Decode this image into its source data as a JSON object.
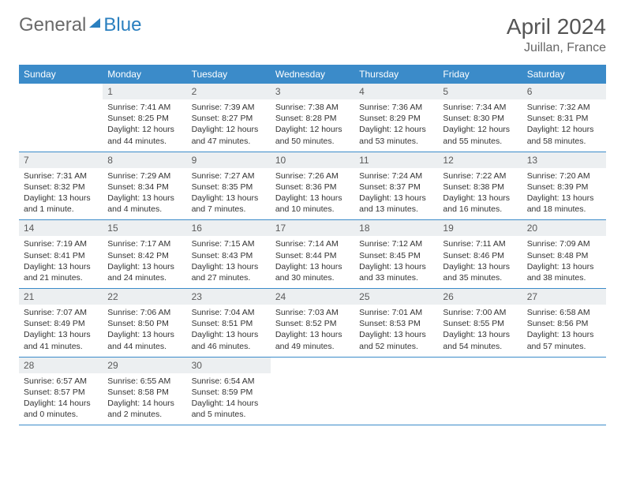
{
  "logo": {
    "part1": "General",
    "part2": "Blue"
  },
  "title": "April 2024",
  "location": "Juillan, France",
  "colors": {
    "header_bg": "#3b8bc9",
    "daynum_bg": "#eceff1",
    "text": "#333333",
    "logo_gray": "#6a6a6a",
    "logo_blue": "#2a7fbf"
  },
  "daysOfWeek": [
    "Sunday",
    "Monday",
    "Tuesday",
    "Wednesday",
    "Thursday",
    "Friday",
    "Saturday"
  ],
  "weeks": [
    [
      {
        "n": "",
        "empty": true
      },
      {
        "n": "1",
        "sr": "Sunrise: 7:41 AM",
        "ss": "Sunset: 8:25 PM",
        "dl1": "Daylight: 12 hours",
        "dl2": "and 44 minutes."
      },
      {
        "n": "2",
        "sr": "Sunrise: 7:39 AM",
        "ss": "Sunset: 8:27 PM",
        "dl1": "Daylight: 12 hours",
        "dl2": "and 47 minutes."
      },
      {
        "n": "3",
        "sr": "Sunrise: 7:38 AM",
        "ss": "Sunset: 8:28 PM",
        "dl1": "Daylight: 12 hours",
        "dl2": "and 50 minutes."
      },
      {
        "n": "4",
        "sr": "Sunrise: 7:36 AM",
        "ss": "Sunset: 8:29 PM",
        "dl1": "Daylight: 12 hours",
        "dl2": "and 53 minutes."
      },
      {
        "n": "5",
        "sr": "Sunrise: 7:34 AM",
        "ss": "Sunset: 8:30 PM",
        "dl1": "Daylight: 12 hours",
        "dl2": "and 55 minutes."
      },
      {
        "n": "6",
        "sr": "Sunrise: 7:32 AM",
        "ss": "Sunset: 8:31 PM",
        "dl1": "Daylight: 12 hours",
        "dl2": "and 58 minutes."
      }
    ],
    [
      {
        "n": "7",
        "sr": "Sunrise: 7:31 AM",
        "ss": "Sunset: 8:32 PM",
        "dl1": "Daylight: 13 hours",
        "dl2": "and 1 minute."
      },
      {
        "n": "8",
        "sr": "Sunrise: 7:29 AM",
        "ss": "Sunset: 8:34 PM",
        "dl1": "Daylight: 13 hours",
        "dl2": "and 4 minutes."
      },
      {
        "n": "9",
        "sr": "Sunrise: 7:27 AM",
        "ss": "Sunset: 8:35 PM",
        "dl1": "Daylight: 13 hours",
        "dl2": "and 7 minutes."
      },
      {
        "n": "10",
        "sr": "Sunrise: 7:26 AM",
        "ss": "Sunset: 8:36 PM",
        "dl1": "Daylight: 13 hours",
        "dl2": "and 10 minutes."
      },
      {
        "n": "11",
        "sr": "Sunrise: 7:24 AM",
        "ss": "Sunset: 8:37 PM",
        "dl1": "Daylight: 13 hours",
        "dl2": "and 13 minutes."
      },
      {
        "n": "12",
        "sr": "Sunrise: 7:22 AM",
        "ss": "Sunset: 8:38 PM",
        "dl1": "Daylight: 13 hours",
        "dl2": "and 16 minutes."
      },
      {
        "n": "13",
        "sr": "Sunrise: 7:20 AM",
        "ss": "Sunset: 8:39 PM",
        "dl1": "Daylight: 13 hours",
        "dl2": "and 18 minutes."
      }
    ],
    [
      {
        "n": "14",
        "sr": "Sunrise: 7:19 AM",
        "ss": "Sunset: 8:41 PM",
        "dl1": "Daylight: 13 hours",
        "dl2": "and 21 minutes."
      },
      {
        "n": "15",
        "sr": "Sunrise: 7:17 AM",
        "ss": "Sunset: 8:42 PM",
        "dl1": "Daylight: 13 hours",
        "dl2": "and 24 minutes."
      },
      {
        "n": "16",
        "sr": "Sunrise: 7:15 AM",
        "ss": "Sunset: 8:43 PM",
        "dl1": "Daylight: 13 hours",
        "dl2": "and 27 minutes."
      },
      {
        "n": "17",
        "sr": "Sunrise: 7:14 AM",
        "ss": "Sunset: 8:44 PM",
        "dl1": "Daylight: 13 hours",
        "dl2": "and 30 minutes."
      },
      {
        "n": "18",
        "sr": "Sunrise: 7:12 AM",
        "ss": "Sunset: 8:45 PM",
        "dl1": "Daylight: 13 hours",
        "dl2": "and 33 minutes."
      },
      {
        "n": "19",
        "sr": "Sunrise: 7:11 AM",
        "ss": "Sunset: 8:46 PM",
        "dl1": "Daylight: 13 hours",
        "dl2": "and 35 minutes."
      },
      {
        "n": "20",
        "sr": "Sunrise: 7:09 AM",
        "ss": "Sunset: 8:48 PM",
        "dl1": "Daylight: 13 hours",
        "dl2": "and 38 minutes."
      }
    ],
    [
      {
        "n": "21",
        "sr": "Sunrise: 7:07 AM",
        "ss": "Sunset: 8:49 PM",
        "dl1": "Daylight: 13 hours",
        "dl2": "and 41 minutes."
      },
      {
        "n": "22",
        "sr": "Sunrise: 7:06 AM",
        "ss": "Sunset: 8:50 PM",
        "dl1": "Daylight: 13 hours",
        "dl2": "and 44 minutes."
      },
      {
        "n": "23",
        "sr": "Sunrise: 7:04 AM",
        "ss": "Sunset: 8:51 PM",
        "dl1": "Daylight: 13 hours",
        "dl2": "and 46 minutes."
      },
      {
        "n": "24",
        "sr": "Sunrise: 7:03 AM",
        "ss": "Sunset: 8:52 PM",
        "dl1": "Daylight: 13 hours",
        "dl2": "and 49 minutes."
      },
      {
        "n": "25",
        "sr": "Sunrise: 7:01 AM",
        "ss": "Sunset: 8:53 PM",
        "dl1": "Daylight: 13 hours",
        "dl2": "and 52 minutes."
      },
      {
        "n": "26",
        "sr": "Sunrise: 7:00 AM",
        "ss": "Sunset: 8:55 PM",
        "dl1": "Daylight: 13 hours",
        "dl2": "and 54 minutes."
      },
      {
        "n": "27",
        "sr": "Sunrise: 6:58 AM",
        "ss": "Sunset: 8:56 PM",
        "dl1": "Daylight: 13 hours",
        "dl2": "and 57 minutes."
      }
    ],
    [
      {
        "n": "28",
        "sr": "Sunrise: 6:57 AM",
        "ss": "Sunset: 8:57 PM",
        "dl1": "Daylight: 14 hours",
        "dl2": "and 0 minutes."
      },
      {
        "n": "29",
        "sr": "Sunrise: 6:55 AM",
        "ss": "Sunset: 8:58 PM",
        "dl1": "Daylight: 14 hours",
        "dl2": "and 2 minutes."
      },
      {
        "n": "30",
        "sr": "Sunrise: 6:54 AM",
        "ss": "Sunset: 8:59 PM",
        "dl1": "Daylight: 14 hours",
        "dl2": "and 5 minutes."
      },
      {
        "n": "",
        "empty": true
      },
      {
        "n": "",
        "empty": true
      },
      {
        "n": "",
        "empty": true
      },
      {
        "n": "",
        "empty": true
      }
    ]
  ]
}
